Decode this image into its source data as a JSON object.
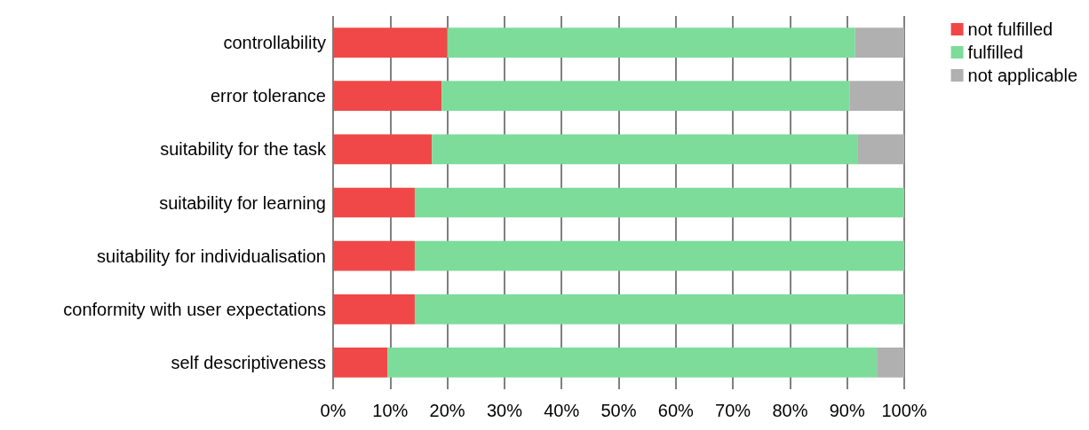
{
  "chart_data": {
    "type": "bar",
    "orientation": "horizontal",
    "stacked": true,
    "categories": [
      "controllability",
      "error tolerance",
      "suitability for the task",
      "suitability for learning",
      "suitability for individualisation",
      "conformity with user expectations",
      "self descriptiveness"
    ],
    "series": [
      {
        "name": "not fulfilled",
        "color": "#f04848",
        "values": [
          20,
          19,
          17.3,
          14.3,
          14.3,
          14.3,
          9.5
        ]
      },
      {
        "name": "fulfilled",
        "color": "#7ddc9a",
        "values": [
          71.4,
          71.4,
          74.6,
          85.7,
          85.7,
          85.7,
          85.7
        ]
      },
      {
        "name": "not applicable",
        "color": "#b0b0b0",
        "values": [
          8.6,
          9.6,
          8.1,
          0,
          0,
          0,
          4.8
        ]
      }
    ],
    "xlim": [
      0,
      100
    ],
    "xticks": [
      {
        "value": 0,
        "label": "0%"
      },
      {
        "value": 10,
        "label": "10%"
      },
      {
        "value": 20,
        "label": "20%"
      },
      {
        "value": 30,
        "label": "30%"
      },
      {
        "value": 40,
        "label": "40%"
      },
      {
        "value": 50,
        "label": "50%"
      },
      {
        "value": 60,
        "label": "60%"
      },
      {
        "value": 70,
        "label": "70%"
      },
      {
        "value": 80,
        "label": "80%"
      },
      {
        "value": 90,
        "label": "90%"
      },
      {
        "value": 100,
        "label": "100%"
      }
    ],
    "grid": "x",
    "legend": "top right"
  }
}
